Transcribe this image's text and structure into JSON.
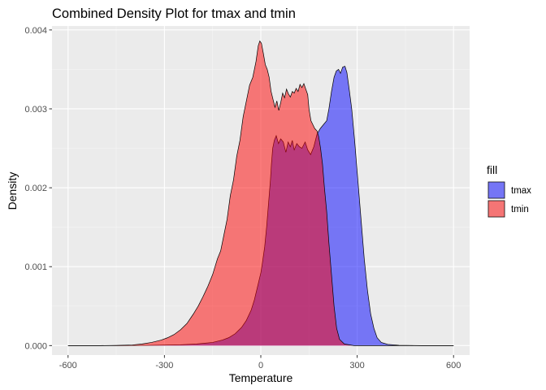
{
  "chart_data": {
    "type": "area",
    "title": "Combined Density Plot for tmax and tmin",
    "xlabel": "Temperature",
    "ylabel": "Density",
    "xlim": [
      -650,
      650
    ],
    "ylim": [
      -0.00012,
      0.00405
    ],
    "x_ticks": [
      -600,
      -300,
      0,
      300,
      600
    ],
    "x_tick_labels": [
      "-600",
      "-300",
      "0",
      "300",
      "600"
    ],
    "y_ticks": [
      0,
      0.001,
      0.002,
      0.003,
      0.004
    ],
    "y_tick_labels": [
      "0.000",
      "0.001",
      "0.002",
      "0.003",
      "0.004"
    ],
    "grid": true,
    "legend": {
      "title": "fill",
      "position": "right"
    },
    "series": [
      {
        "name": "tmax",
        "color": "#0000ff",
        "opacity": 0.5,
        "points": [
          [
            -600,
            0
          ],
          [
            -450,
            0
          ],
          [
            -350,
            3e-06
          ],
          [
            -250,
            1e-05
          ],
          [
            -200,
            2e-05
          ],
          [
            -150,
            4e-05
          ],
          [
            -120,
            7e-05
          ],
          [
            -100,
            0.0001
          ],
          [
            -80,
            0.00015
          ],
          [
            -60,
            0.00023
          ],
          [
            -45,
            0.00032
          ],
          [
            -30,
            0.00045
          ],
          [
            -20,
            0.00058
          ],
          [
            -10,
            0.00075
          ],
          [
            0,
            0.00092
          ],
          [
            5,
            0.00105
          ],
          [
            12,
            0.00125
          ],
          [
            18,
            0.0015
          ],
          [
            24,
            0.0018
          ],
          [
            30,
            0.0021
          ],
          [
            33,
            0.0023
          ],
          [
            37,
            0.0025
          ],
          [
            42,
            0.0026
          ],
          [
            48,
            0.00266
          ],
          [
            55,
            0.00256
          ],
          [
            62,
            0.00262
          ],
          [
            70,
            0.00258
          ],
          [
            78,
            0.00245
          ],
          [
            85,
            0.00258
          ],
          [
            92,
            0.00252
          ],
          [
            98,
            0.0026
          ],
          [
            104,
            0.00248
          ],
          [
            112,
            0.00256
          ],
          [
            120,
            0.00252
          ],
          [
            128,
            0.0025
          ],
          [
            138,
            0.00258
          ],
          [
            146,
            0.00248
          ],
          [
            155,
            0.00242
          ],
          [
            165,
            0.00252
          ],
          [
            175,
            0.00268
          ],
          [
            185,
            0.00275
          ],
          [
            195,
            0.0028
          ],
          [
            205,
            0.00285
          ],
          [
            212,
            0.003
          ],
          [
            220,
            0.00322
          ],
          [
            228,
            0.0034
          ],
          [
            235,
            0.00348
          ],
          [
            242,
            0.0035
          ],
          [
            248,
            0.00345
          ],
          [
            255,
            0.00353
          ],
          [
            262,
            0.00354
          ],
          [
            268,
            0.00346
          ],
          [
            275,
            0.00325
          ],
          [
            283,
            0.003
          ],
          [
            292,
            0.0026
          ],
          [
            302,
            0.0021
          ],
          [
            312,
            0.0016
          ],
          [
            322,
            0.0011
          ],
          [
            332,
            0.0007
          ],
          [
            342,
            0.0004
          ],
          [
            352,
            0.00022
          ],
          [
            362,
            0.0001
          ],
          [
            375,
            4e-05
          ],
          [
            395,
            1.5e-05
          ],
          [
            430,
            4e-06
          ],
          [
            500,
            0
          ],
          [
            600,
            0
          ]
        ]
      },
      {
        "name": "tmin",
        "color": "#ff0000",
        "opacity": 0.5,
        "points": [
          [
            -600,
            0
          ],
          [
            -500,
            0
          ],
          [
            -450,
            3e-06
          ],
          [
            -400,
            8e-06
          ],
          [
            -370,
            2e-05
          ],
          [
            -340,
            4e-05
          ],
          [
            -310,
            7e-05
          ],
          [
            -290,
            0.0001
          ],
          [
            -270,
            0.00014
          ],
          [
            -250,
            0.0002
          ],
          [
            -230,
            0.00028
          ],
          [
            -210,
            0.0004
          ],
          [
            -195,
            0.0005
          ],
          [
            -180,
            0.00062
          ],
          [
            -165,
            0.00075
          ],
          [
            -150,
            0.0009
          ],
          [
            -135,
            0.0011
          ],
          [
            -125,
            0.0012
          ],
          [
            -115,
            0.0014
          ],
          [
            -105,
            0.0016
          ],
          [
            -95,
            0.0019
          ],
          [
            -85,
            0.0021
          ],
          [
            -75,
            0.0024
          ],
          [
            -65,
            0.0026
          ],
          [
            -55,
            0.0029
          ],
          [
            -45,
            0.0031
          ],
          [
            -35,
            0.0033
          ],
          [
            -25,
            0.0034
          ],
          [
            -15,
            0.0036
          ],
          [
            -8,
            0.0038
          ],
          [
            -3,
            0.00386
          ],
          [
            2,
            0.00383
          ],
          [
            8,
            0.0037
          ],
          [
            14,
            0.00356
          ],
          [
            20,
            0.0035
          ],
          [
            26,
            0.0034
          ],
          [
            32,
            0.00322
          ],
          [
            38,
            0.00312
          ],
          [
            44,
            0.00302
          ],
          [
            50,
            0.0031
          ],
          [
            56,
            0.00298
          ],
          [
            62,
            0.00308
          ],
          [
            68,
            0.0032
          ],
          [
            74,
            0.00314
          ],
          [
            80,
            0.00325
          ],
          [
            86,
            0.00319
          ],
          [
            92,
            0.00315
          ],
          [
            98,
            0.00322
          ],
          [
            104,
            0.0032
          ],
          [
            110,
            0.00326
          ],
          [
            116,
            0.00322
          ],
          [
            122,
            0.00331
          ],
          [
            128,
            0.00327
          ],
          [
            134,
            0.00332
          ],
          [
            140,
            0.00325
          ],
          [
            146,
            0.00318
          ],
          [
            150,
            0.003
          ],
          [
            156,
            0.00285
          ],
          [
            162,
            0.0028
          ],
          [
            168,
            0.00275
          ],
          [
            175,
            0.00272
          ],
          [
            180,
            0.00265
          ],
          [
            186,
            0.0025
          ],
          [
            192,
            0.0023
          ],
          [
            198,
            0.002
          ],
          [
            205,
            0.0017
          ],
          [
            212,
            0.0013
          ],
          [
            220,
            0.0009
          ],
          [
            228,
            0.0005
          ],
          [
            236,
            0.00022
          ],
          [
            245,
            8e-05
          ],
          [
            260,
            2e-05
          ],
          [
            290,
            0
          ],
          [
            600,
            0
          ]
        ]
      }
    ]
  }
}
